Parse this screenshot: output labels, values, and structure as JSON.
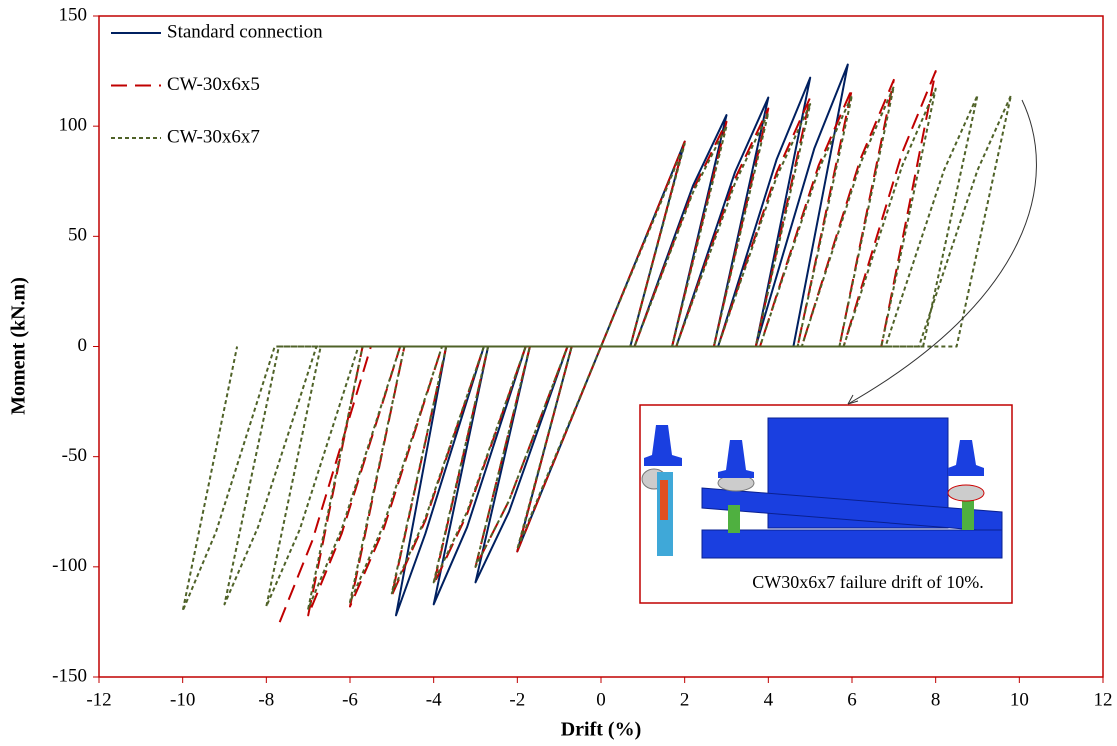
{
  "chart_data": {
    "type": "line",
    "x_label": "Drift (%)",
    "y_label": "Moment (kN.m)",
    "xlim": [
      -12,
      12
    ],
    "ylim": [
      -150,
      150
    ],
    "xticks": [
      -12,
      -10,
      -8,
      -6,
      -4,
      -2,
      0,
      2,
      4,
      6,
      8,
      10,
      12
    ],
    "yticks": [
      -150,
      -100,
      -50,
      0,
      50,
      100,
      150
    ],
    "legend": "upper left",
    "annotation": "CW30x6x7 failure drift of 10%.",
    "series": [
      {
        "name": "Standard connection",
        "color": "#002060",
        "dash": "solid",
        "x": [
          0,
          1.4,
          2,
          0.7,
          0,
          -1.4,
          -2,
          -0.7,
          0,
          0.8,
          2.2,
          3,
          1.7,
          0,
          -0.8,
          -2.2,
          -3,
          -1.7,
          0,
          1.8,
          3.2,
          4,
          2.7,
          0,
          -1.8,
          -3.2,
          -4,
          -2.7,
          0,
          2.8,
          4.2,
          5,
          3.7,
          0,
          -2.8,
          -4.2,
          -4.9,
          -3.7,
          0,
          3.7,
          5.1,
          5.9,
          4.6
        ],
        "values": [
          0,
          65,
          93,
          0,
          0,
          -65,
          -93,
          0,
          0,
          0,
          73,
          105,
          0,
          0,
          0,
          -75,
          -107,
          0,
          0,
          0,
          79,
          113,
          0,
          0,
          0,
          -82,
          -117,
          0,
          0,
          0,
          85,
          122,
          0,
          0,
          0,
          -85,
          -122,
          0,
          0,
          0,
          90,
          128,
          0
        ]
      },
      {
        "name": "CW-30x6x5",
        "color": "#c00000",
        "dash": "dashed",
        "x": [
          0,
          1.4,
          2,
          0.7,
          0,
          -1.4,
          -2,
          -0.7,
          0,
          0.8,
          2.2,
          3,
          1.7,
          0,
          -0.8,
          -2.2,
          -3,
          -1.7,
          0,
          1.8,
          3.2,
          4,
          2.7,
          0,
          -1.8,
          -3.2,
          -4,
          -2.7,
          0,
          2.8,
          4.2,
          5,
          3.7,
          0,
          -2.8,
          -4.2,
          -5,
          -3.7,
          0,
          3.8,
          5.2,
          6,
          4.7,
          0,
          -3.8,
          -5.2,
          -6,
          -4.7,
          0,
          4.8,
          6.2,
          7,
          5.7,
          0,
          -4.8,
          -6.2,
          -7,
          -5.7,
          0,
          5.8,
          7.2,
          8,
          6.7,
          0,
          -5.5,
          -6.9,
          -7.7
        ],
        "values": [
          0,
          65,
          93,
          0,
          0,
          -65,
          -93,
          0,
          0,
          0,
          71,
          102,
          0,
          0,
          0,
          -70,
          -100,
          0,
          0,
          0,
          76,
          108,
          0,
          0,
          0,
          -76,
          -108,
          0,
          0,
          0,
          79,
          113,
          0,
          0,
          0,
          -79,
          -113,
          0,
          0,
          0,
          82,
          117,
          0,
          0,
          0,
          -83,
          -118,
          0,
          0,
          0,
          85,
          121,
          0,
          0,
          0,
          -85,
          -122,
          0,
          0,
          0,
          88,
          125,
          0,
          0,
          0,
          -88,
          -126
        ]
      },
      {
        "name": "CW-30x6x7",
        "color": "#4f6228",
        "dash": "dotted",
        "x": [
          0,
          1.4,
          2,
          0.7,
          0,
          -1.4,
          -2,
          -0.7,
          0,
          0.8,
          2.2,
          3,
          1.7,
          0,
          -0.8,
          -2.2,
          -3,
          -1.7,
          0,
          1.8,
          3.2,
          4,
          2.7,
          0,
          -1.8,
          -3.2,
          -4,
          -2.7,
          0,
          2.8,
          4.2,
          5,
          3.7,
          0,
          -2.8,
          -4.2,
          -5,
          -3.7,
          0,
          3.8,
          5.2,
          6,
          4.7,
          0,
          -3.8,
          -5.2,
          -6,
          -4.7,
          0,
          4.8,
          6.2,
          7,
          5.7,
          0,
          -4.8,
          -6.2,
          -7,
          -5.7,
          0,
          5.8,
          7.2,
          8,
          6.7,
          0,
          -5.8,
          -7.2,
          -8,
          -6.7,
          0,
          6.8,
          8.2,
          9,
          7.7,
          0,
          -6.8,
          -8.2,
          -9,
          -7.7,
          0,
          7.6,
          9,
          9.8,
          8.5,
          0,
          -7.8,
          -9.2,
          -10,
          -8.7
        ],
        "values": [
          0,
          64,
          92,
          0,
          0,
          -64,
          -92,
          0,
          0,
          0,
          70,
          100,
          0,
          0,
          0,
          -70,
          -100,
          0,
          0,
          0,
          74,
          106,
          0,
          0,
          0,
          -75,
          -107,
          0,
          0,
          0,
          77,
          110,
          0,
          0,
          0,
          -78,
          -112,
          0,
          0,
          0,
          80,
          114,
          0,
          0,
          0,
          -81,
          -116,
          0,
          0,
          0,
          83,
          118,
          0,
          0,
          0,
          -83,
          -119,
          0,
          0,
          0,
          82,
          117,
          0,
          0,
          0,
          -83,
          -118,
          0,
          0,
          0,
          80,
          114,
          0,
          0,
          0,
          -82,
          -117,
          0,
          0,
          0,
          80,
          114,
          0,
          0,
          0,
          -84,
          -120,
          0
        ]
      }
    ]
  }
}
